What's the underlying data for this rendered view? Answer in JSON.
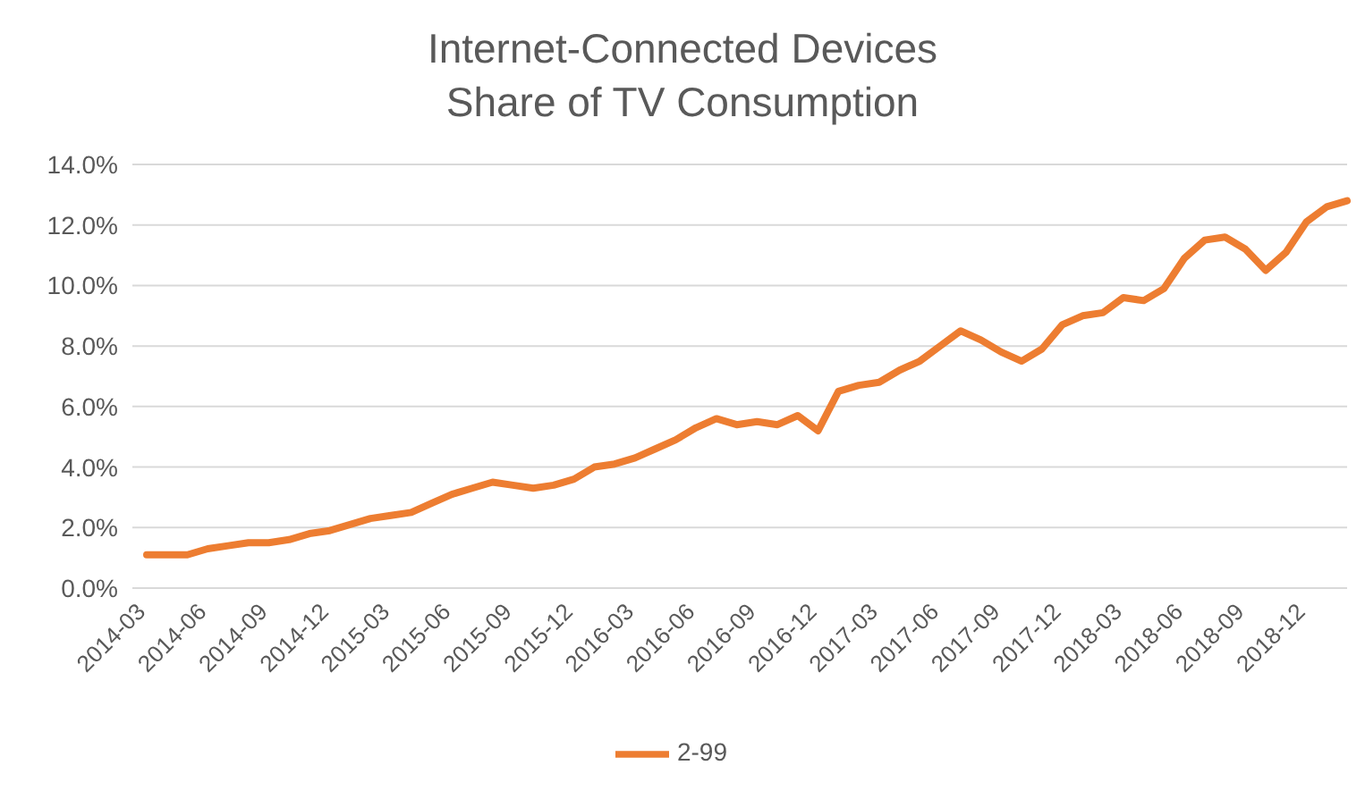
{
  "chart_data": {
    "type": "line",
    "title": "Internet-Connected Devices",
    "subtitle": "Share of TV Consumption",
    "categories": [
      "2014-03",
      null,
      null,
      "2014-06",
      null,
      null,
      "2014-09",
      null,
      null,
      "2014-12",
      null,
      null,
      "2015-03",
      null,
      null,
      "2015-06",
      null,
      null,
      "2015-09",
      null,
      null,
      "2015-12",
      null,
      null,
      "2016-03",
      null,
      null,
      "2016-06",
      null,
      null,
      "2016-09",
      null,
      null,
      "2016-12",
      null,
      null,
      "2017-03",
      null,
      null,
      "2017-06",
      null,
      null,
      "2017-09",
      null,
      null,
      "2017-12",
      null,
      null,
      "2018-03",
      null,
      null,
      "2018-06",
      null,
      null,
      "2018-09",
      null,
      null,
      "2018-12",
      null,
      null
    ],
    "series": [
      {
        "name": "2-99",
        "color": "#ed7d31",
        "values": [
          1.1,
          1.1,
          1.1,
          1.3,
          1.4,
          1.5,
          1.5,
          1.6,
          1.8,
          1.9,
          2.1,
          2.3,
          2.4,
          2.5,
          2.8,
          3.1,
          3.3,
          3.5,
          3.4,
          3.3,
          3.4,
          3.6,
          4.0,
          4.1,
          4.3,
          4.6,
          4.9,
          5.3,
          5.6,
          5.4,
          5.5,
          5.4,
          5.7,
          5.2,
          6.5,
          6.7,
          6.8,
          7.2,
          7.5,
          8.0,
          8.5,
          8.2,
          7.8,
          7.5,
          7.9,
          8.7,
          9.0,
          9.1,
          9.6,
          9.5,
          9.9,
          10.9,
          11.5,
          11.6,
          11.2,
          10.5,
          11.1,
          12.1,
          12.6,
          12.8
        ]
      }
    ],
    "ylim": [
      0,
      14
    ],
    "yticks": [
      {
        "value": 0,
        "label": "0.0%"
      },
      {
        "value": 2,
        "label": "2.0%"
      },
      {
        "value": 4,
        "label": "4.0%"
      },
      {
        "value": 6,
        "label": "6.0%"
      },
      {
        "value": 8,
        "label": "8.0%"
      },
      {
        "value": 10,
        "label": "10.0%"
      },
      {
        "value": 12,
        "label": "12.0%"
      },
      {
        "value": 14,
        "label": "14.0%"
      }
    ],
    "grid": "y",
    "legend": "bottom",
    "marker": "none",
    "line_style": "solid"
  }
}
